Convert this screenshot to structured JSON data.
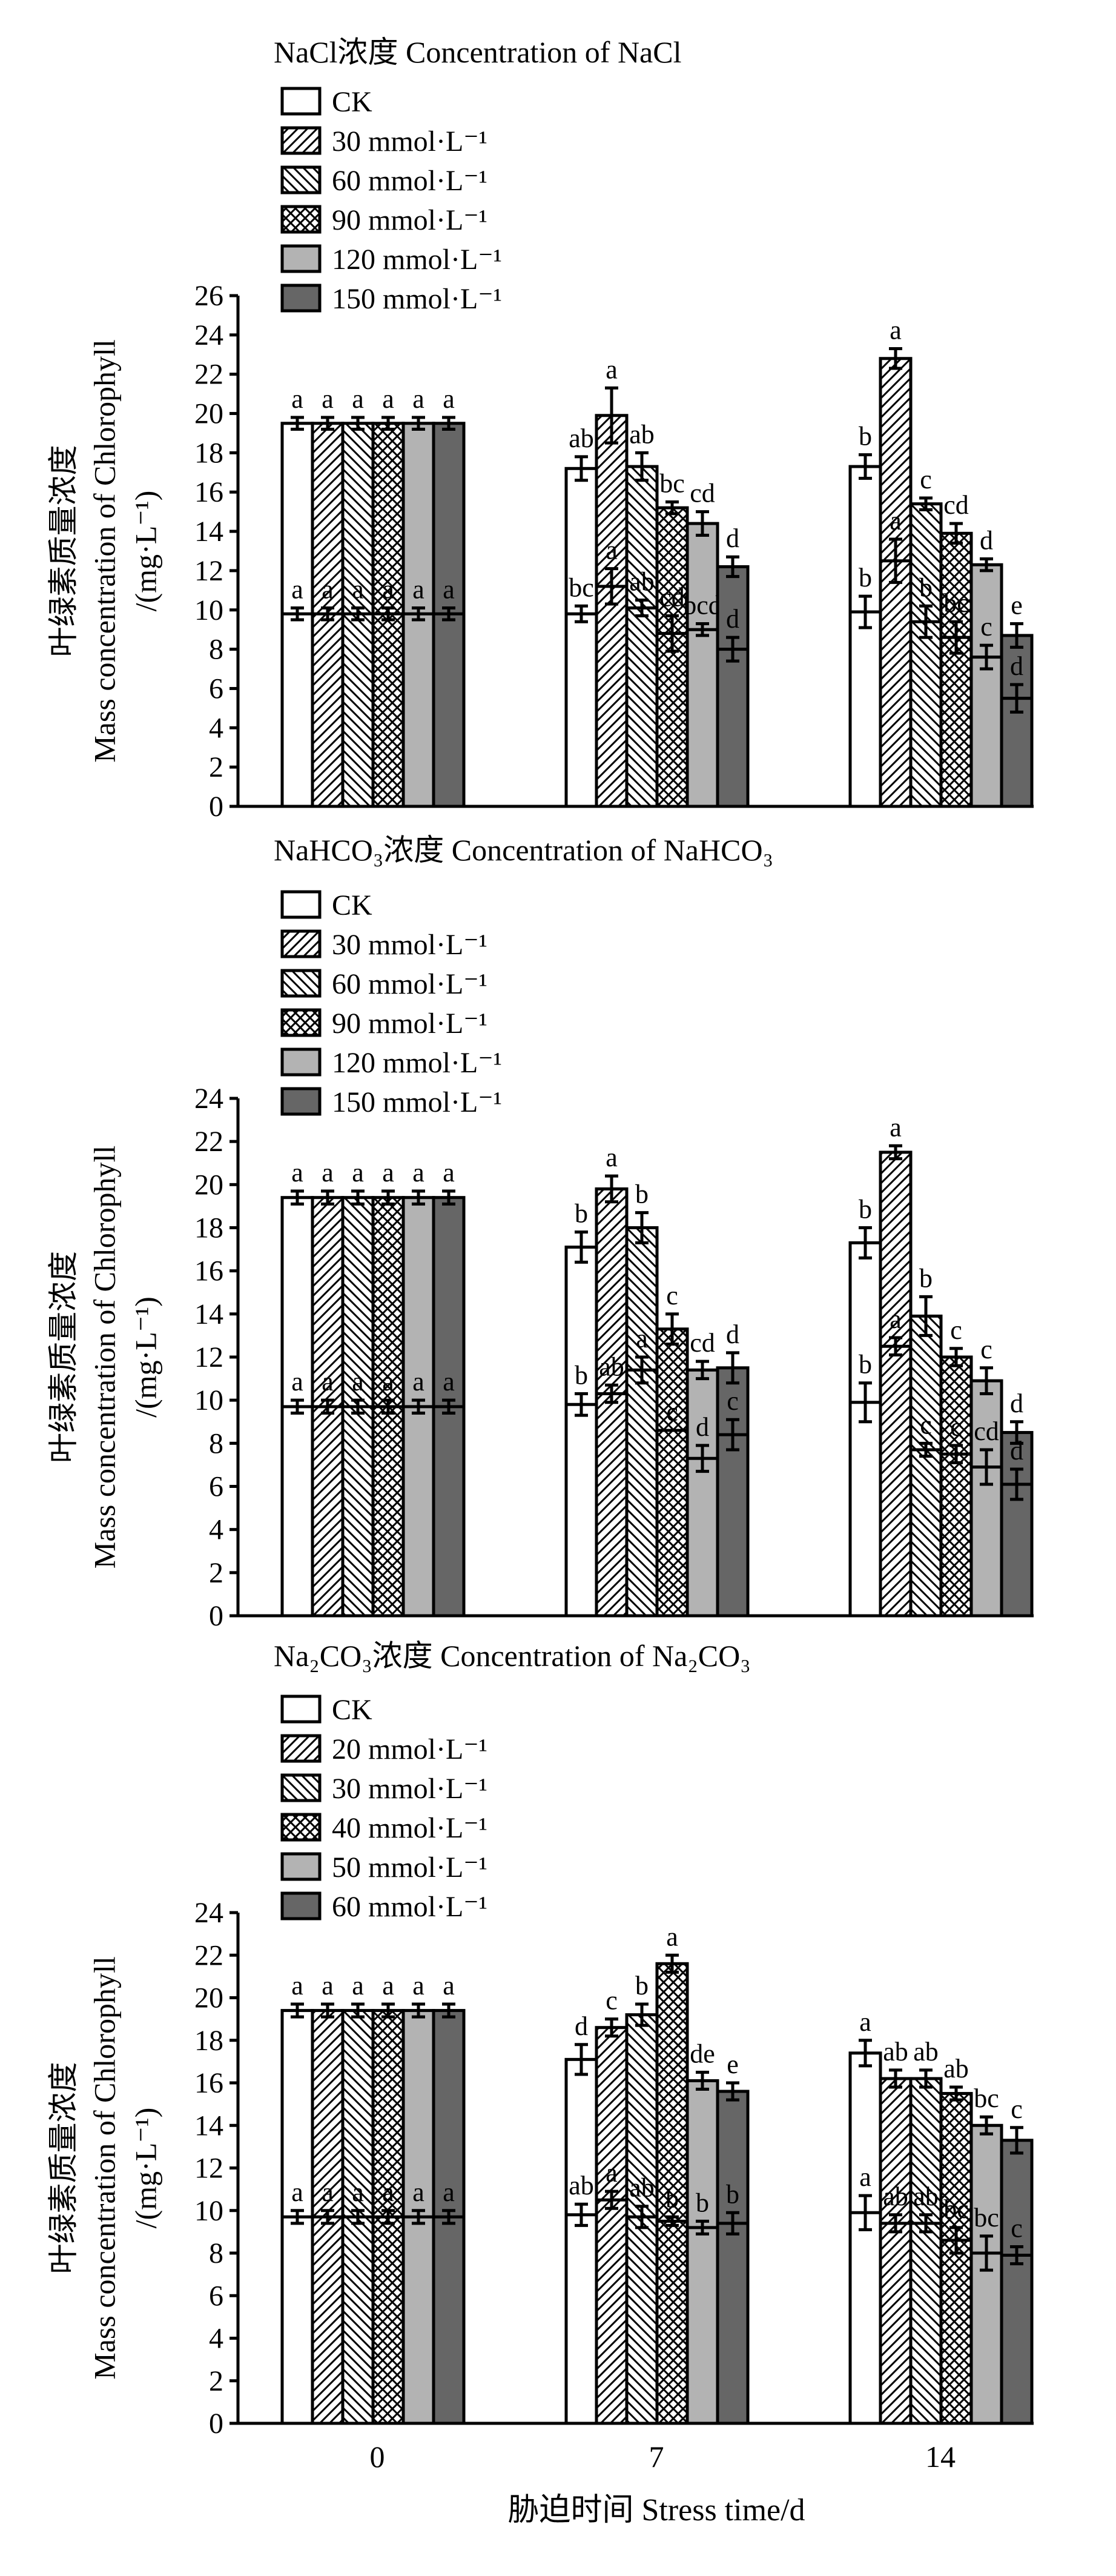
{
  "x_categories": [
    "0",
    "7",
    "14"
  ],
  "x_title": "胁迫时间 Stress time/d",
  "y_title_lines": [
    "叶绿素质量浓度",
    "Mass concentration of Chlorophyll",
    "/(mg·L⁻¹)"
  ],
  "colors": {
    "light_gray": "#b3b3b3",
    "dark_gray": "#666666",
    "ink": "#000000"
  },
  "chart_data": [
    {
      "type": "bar",
      "title": "NaCl浓度 Concentration of NaCl",
      "ylim": [
        0,
        26
      ],
      "yticks": [
        0,
        2,
        4,
        6,
        8,
        10,
        12,
        14,
        16,
        18,
        20,
        22,
        24,
        26
      ],
      "series": [
        {
          "name": "CK",
          "fill": "white",
          "total": [
            19.5,
            17.2,
            17.3
          ],
          "total_err": [
            0.3,
            0.6,
            0.6
          ],
          "total_letters": [
            "a",
            "ab",
            "b"
          ],
          "lower": [
            9.8,
            9.8,
            9.9
          ],
          "lower_err": [
            0.3,
            0.4,
            0.8
          ],
          "lower_letters": [
            "a",
            "bc",
            "b"
          ]
        },
        {
          "name": "30 mmol·L⁻¹",
          "fill": "diag-right",
          "total": [
            19.5,
            19.9,
            22.8
          ],
          "total_err": [
            0.3,
            1.4,
            0.5
          ],
          "total_letters": [
            "a",
            "a",
            "a"
          ],
          "lower": [
            9.8,
            11.2,
            12.5
          ],
          "lower_err": [
            0.3,
            0.9,
            1.1
          ],
          "lower_letters": [
            "a",
            "a",
            "a"
          ]
        },
        {
          "name": "60 mmol·L⁻¹",
          "fill": "diag-left",
          "total": [
            19.5,
            17.3,
            15.4
          ],
          "total_err": [
            0.3,
            0.7,
            0.3
          ],
          "total_letters": [
            "a",
            "ab",
            "c"
          ],
          "lower": [
            9.8,
            10.1,
            9.4
          ],
          "lower_err": [
            0.3,
            0.4,
            0.8
          ],
          "lower_letters": [
            "a",
            "ab",
            "b"
          ]
        },
        {
          "name": "90 mmol·L⁻¹",
          "fill": "crosshatch",
          "total": [
            19.5,
            15.2,
            13.9
          ],
          "total_err": [
            0.3,
            0.3,
            0.5
          ],
          "total_letters": [
            "a",
            "bc",
            "cd"
          ],
          "lower": [
            9.8,
            8.8,
            8.6
          ],
          "lower_err": [
            0.3,
            0.9,
            0.8
          ],
          "lower_letters": [
            "a",
            "cd",
            "bc"
          ]
        },
        {
          "name": "120 mmol·L⁻¹",
          "fill": "light_gray",
          "total": [
            19.5,
            14.4,
            12.3
          ],
          "total_err": [
            0.3,
            0.6,
            0.3
          ],
          "total_letters": [
            "a",
            "cd",
            "d"
          ],
          "lower": [
            9.8,
            9.0,
            7.6
          ],
          "lower_err": [
            0.3,
            0.3,
            0.6
          ],
          "lower_letters": [
            "a",
            "bcd",
            "c"
          ]
        },
        {
          "name": "150 mmol·L⁻¹",
          "fill": "dark_gray",
          "total": [
            19.5,
            12.2,
            8.7
          ],
          "total_err": [
            0.3,
            0.5,
            0.6
          ],
          "total_letters": [
            "a",
            "d",
            "e"
          ],
          "lower": [
            9.8,
            8.0,
            5.5
          ],
          "lower_err": [
            0.3,
            0.6,
            0.7
          ],
          "lower_letters": [
            "a",
            "d",
            "d"
          ]
        }
      ]
    },
    {
      "type": "bar",
      "title": "NaHCO₃浓度 Concentration of NaHCO₃",
      "ylim": [
        0,
        24
      ],
      "yticks": [
        0,
        2,
        4,
        6,
        8,
        10,
        12,
        14,
        16,
        18,
        20,
        22,
        24
      ],
      "series": [
        {
          "name": "CK",
          "fill": "white",
          "total": [
            19.4,
            17.1,
            17.3
          ],
          "total_err": [
            0.3,
            0.7,
            0.7
          ],
          "total_letters": [
            "a",
            "b",
            "b"
          ],
          "lower": [
            9.7,
            9.8,
            9.9
          ],
          "lower_err": [
            0.3,
            0.5,
            0.9
          ],
          "lower_letters": [
            "a",
            "b",
            "b"
          ]
        },
        {
          "name": "30 mmol·L⁻¹",
          "fill": "diag-right",
          "total": [
            19.4,
            19.8,
            21.5
          ],
          "total_err": [
            0.3,
            0.6,
            0.3
          ],
          "total_letters": [
            "a",
            "a",
            "a"
          ],
          "lower": [
            9.7,
            10.3,
            12.5
          ],
          "lower_err": [
            0.3,
            0.4,
            0.4
          ],
          "lower_letters": [
            "a",
            "ab",
            "a"
          ]
        },
        {
          "name": "60 mmol·L⁻¹",
          "fill": "diag-left",
          "total": [
            19.4,
            18.0,
            13.9
          ],
          "total_err": [
            0.3,
            0.7,
            0.9
          ],
          "total_letters": [
            "a",
            "b",
            "b"
          ],
          "lower": [
            9.7,
            11.4,
            7.7
          ],
          "lower_err": [
            0.3,
            0.6,
            0.3
          ],
          "lower_letters": [
            "a",
            "a",
            "c"
          ]
        },
        {
          "name": "90 mmol·L⁻¹",
          "fill": "crosshatch",
          "total": [
            19.4,
            13.3,
            12.0
          ],
          "total_err": [
            0.3,
            0.7,
            0.4
          ],
          "total_letters": [
            "a",
            "c",
            "c"
          ],
          "lower": [
            9.7,
            8.6,
            7.5
          ],
          "lower_err": [
            0.3,
            0.0,
            0.4
          ],
          "lower_letters": [
            "a",
            "c",
            "c"
          ]
        },
        {
          "name": "120 mmol·L⁻¹",
          "fill": "light_gray",
          "total": [
            19.4,
            11.4,
            10.9
          ],
          "total_err": [
            0.3,
            0.4,
            0.6
          ],
          "total_letters": [
            "a",
            "cd",
            "c"
          ],
          "lower": [
            9.7,
            7.3,
            6.9
          ],
          "lower_err": [
            0.3,
            0.6,
            0.8
          ],
          "lower_letters": [
            "a",
            "d",
            "cd"
          ]
        },
        {
          "name": "150 mmol·L⁻¹",
          "fill": "dark_gray",
          "total": [
            19.4,
            11.5,
            8.5
          ],
          "total_err": [
            0.3,
            0.7,
            0.5
          ],
          "total_letters": [
            "a",
            "d",
            "d"
          ],
          "lower": [
            9.7,
            8.4,
            6.1
          ],
          "lower_err": [
            0.3,
            0.7,
            0.7
          ],
          "lower_letters": [
            "a",
            "c",
            "d"
          ]
        }
      ]
    },
    {
      "type": "bar",
      "title": "Na₂CO₃浓度 Concentration of Na₂CO₃",
      "ylim": [
        0,
        24
      ],
      "yticks": [
        0,
        2,
        4,
        6,
        8,
        10,
        12,
        14,
        16,
        18,
        20,
        22,
        24
      ],
      "series": [
        {
          "name": "CK",
          "fill": "white",
          "total": [
            19.4,
            17.1,
            17.4
          ],
          "total_err": [
            0.3,
            0.7,
            0.6
          ],
          "total_letters": [
            "a",
            "d",
            "a"
          ],
          "lower": [
            9.7,
            9.8,
            9.9
          ],
          "lower_err": [
            0.3,
            0.5,
            0.8
          ],
          "lower_letters": [
            "a",
            "ab",
            "a"
          ]
        },
        {
          "name": "20 mmol·L⁻¹",
          "fill": "diag-right",
          "total": [
            19.4,
            18.6,
            16.2
          ],
          "total_err": [
            0.3,
            0.4,
            0.4
          ],
          "total_letters": [
            "a",
            "c",
            "ab"
          ],
          "lower": [
            9.7,
            10.5,
            9.4
          ],
          "lower_err": [
            0.3,
            0.4,
            0.4
          ],
          "lower_letters": [
            "a",
            "a",
            "ab"
          ]
        },
        {
          "name": "30 mmol·L⁻¹",
          "fill": "diag-left",
          "total": [
            19.4,
            19.2,
            16.2
          ],
          "total_err": [
            0.3,
            0.5,
            0.4
          ],
          "total_letters": [
            "a",
            "b",
            "ab"
          ],
          "lower": [
            9.7,
            9.7,
            9.4
          ],
          "lower_err": [
            0.3,
            0.5,
            0.4
          ],
          "lower_letters": [
            "a",
            "ab",
            "ab"
          ]
        },
        {
          "name": "40 mmol·L⁻¹",
          "fill": "crosshatch",
          "total": [
            19.4,
            21.6,
            15.5
          ],
          "total_err": [
            0.3,
            0.4,
            0.3
          ],
          "total_letters": [
            "a",
            "a",
            "ab"
          ],
          "lower": [
            9.7,
            9.5,
            8.6
          ],
          "lower_err": [
            0.3,
            0.2,
            0.6
          ],
          "lower_letters": [
            "a",
            "b",
            "bc"
          ]
        },
        {
          "name": "50 mmol·L⁻¹",
          "fill": "light_gray",
          "total": [
            19.4,
            16.1,
            14.0
          ],
          "total_err": [
            0.3,
            0.4,
            0.4
          ],
          "total_letters": [
            "a",
            "de",
            "bc"
          ],
          "lower": [
            9.7,
            9.2,
            8.0
          ],
          "lower_err": [
            0.3,
            0.3,
            0.8
          ],
          "lower_letters": [
            "a",
            "b",
            "bc"
          ]
        },
        {
          "name": "60 mmol·L⁻¹",
          "fill": "dark_gray",
          "total": [
            19.4,
            15.6,
            13.3
          ],
          "total_err": [
            0.3,
            0.4,
            0.6
          ],
          "total_letters": [
            "a",
            "e",
            "c"
          ],
          "lower": [
            9.7,
            9.4,
            7.9
          ],
          "lower_err": [
            0.3,
            0.5,
            0.4
          ],
          "lower_letters": [
            "a",
            "b",
            "c"
          ]
        }
      ]
    }
  ]
}
